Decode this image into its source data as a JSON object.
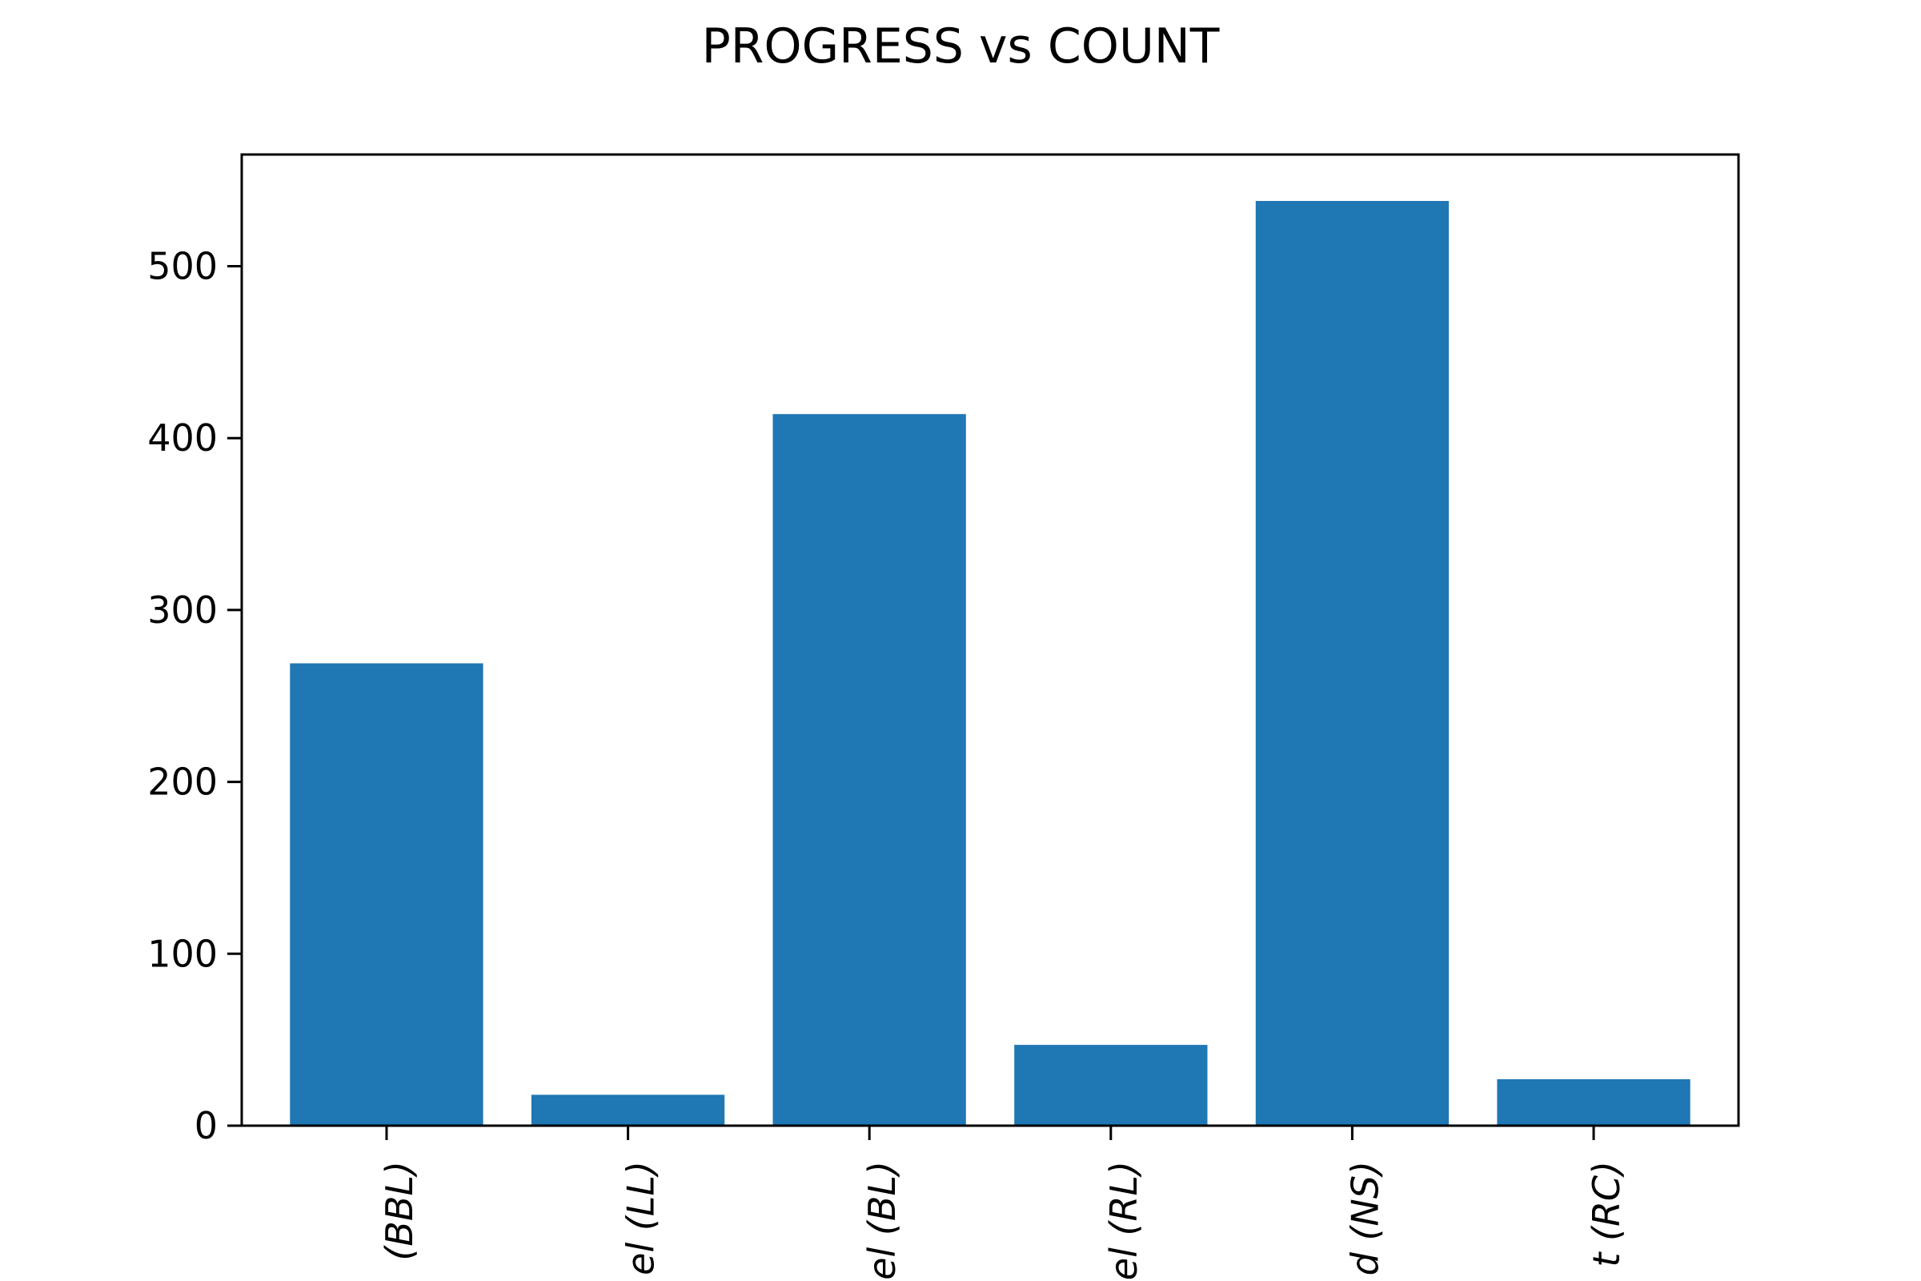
{
  "chart_data": {
    "type": "bar",
    "title": "PROGRESS vs COUNT",
    "xlabel": "",
    "ylabel": "",
    "categories": [
      "(BBL)",
      "el (LL)",
      "el (BL)",
      "el (RL)",
      "d (NS)",
      "t (RC)"
    ],
    "values": [
      269,
      18,
      414,
      47,
      538,
      27
    ],
    "ylim": [
      0,
      565
    ],
    "yticks": [
      0,
      100,
      200,
      300,
      400,
      500
    ],
    "grid": false,
    "legend": "none",
    "x_tick_rotation": "vertical, cropped at bottom edge",
    "colors": {
      "bar": "#1f77b4",
      "axis": "#000000",
      "text": "#000000",
      "background": "#ffffff"
    }
  }
}
